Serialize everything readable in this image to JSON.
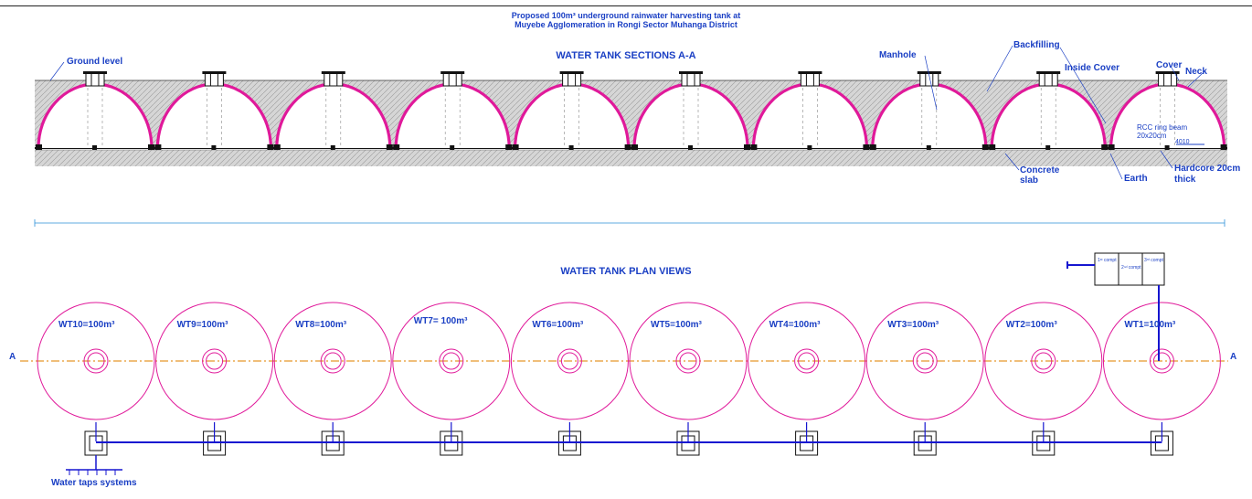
{
  "header": {
    "line1": "Proposed 100m³ underground rainwater harvesting  tank at",
    "line2": "Muyebe Agglomeration in Rongi Sector Muhanga District"
  },
  "section": {
    "title": "WATER TANK SECTIONS A-A",
    "labels": {
      "ground_level": "Ground level",
      "manhole": "Manhole",
      "backfilling": "Backfilling",
      "inside_cover": "Inside Cover",
      "cover": "Cover",
      "neck": "Neck",
      "rcc_ring_beam_1": "RCC ring beam",
      "rcc_ring_beam_2": "20x20cm",
      "concrete_slab_1": "Concrete",
      "concrete_slab_2": "slab",
      "earth": "Earth",
      "hardcore_1": "Hardcore 20cm",
      "hardcore_2": "thick",
      "dim_4010": "4010"
    },
    "tank_count": 10,
    "colors": {
      "dome": "#e0199a",
      "hatch_bg": "#cfcfcf",
      "hatch_line": "#8c8c8c",
      "label": "#1a3fc4",
      "dimension": "#2a8fd8"
    }
  },
  "plan": {
    "title": "WATER TANK PLAN VIEWS",
    "axis_left": "A",
    "axis_right": "A",
    "tanks": [
      {
        "label": "WT10=100m³"
      },
      {
        "label": "WT9=100m³"
      },
      {
        "label": "WT8=100m³"
      },
      {
        "label": "WT7= 100m³"
      },
      {
        "label": "WT6=100m³"
      },
      {
        "label": "WT5=100m³"
      },
      {
        "label": "WT4=100m³"
      },
      {
        "label": "WT3=100m³"
      },
      {
        "label": "WT2=100m³"
      },
      {
        "label": "WT1=100m³"
      }
    ],
    "water_taps": "Water taps systems",
    "filter": {
      "compt1": "1ˢᵗ compt",
      "compt2": "2ⁿᵈ compt",
      "compt3": "3ʳᵈ compt"
    },
    "colors": {
      "circle": "#e0199a",
      "pipe": "#1515d0",
      "axis": "#e8982a"
    }
  }
}
